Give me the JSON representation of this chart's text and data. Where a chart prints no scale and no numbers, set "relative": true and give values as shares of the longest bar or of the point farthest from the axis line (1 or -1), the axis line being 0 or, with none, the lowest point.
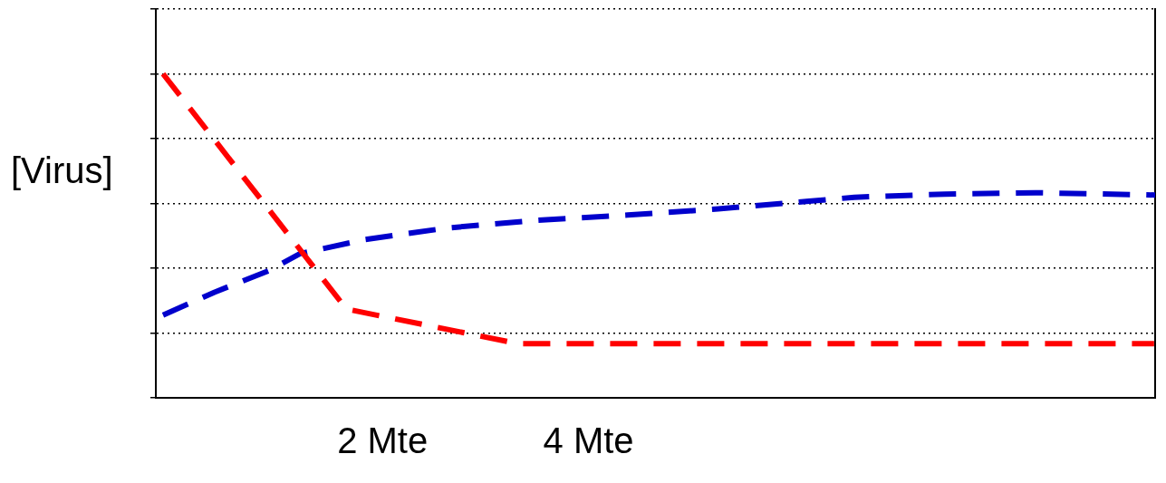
{
  "chart_data": {
    "type": "line",
    "ylabel": "[Virus]",
    "relative": true,
    "grid": "y",
    "line_style": "dashed",
    "xlim": [
      -0.2,
      9.5
    ],
    "xticks": [
      {
        "value": 2,
        "label": "2 Mte"
      },
      {
        "value": 4,
        "label": "4 Mte"
      }
    ],
    "series": [
      {
        "color": "#ff0000",
        "x": [
          -0.13,
          1.65,
          3.32,
          9.49
        ],
        "values": [
          1.0,
          0.274,
          0.167,
          0.167
        ]
      },
      {
        "color": "#0000cc",
        "x": [
          -0.13,
          0.37,
          0.9,
          1.2,
          1.82,
          2.62,
          3.5,
          4.38,
          5.26,
          6.14,
          6.58,
          7.46,
          8.34,
          9.5
        ],
        "values": [
          0.255,
          0.326,
          0.393,
          0.445,
          0.488,
          0.524,
          0.548,
          0.564,
          0.583,
          0.607,
          0.619,
          0.629,
          0.633,
          0.626
        ]
      }
    ]
  }
}
